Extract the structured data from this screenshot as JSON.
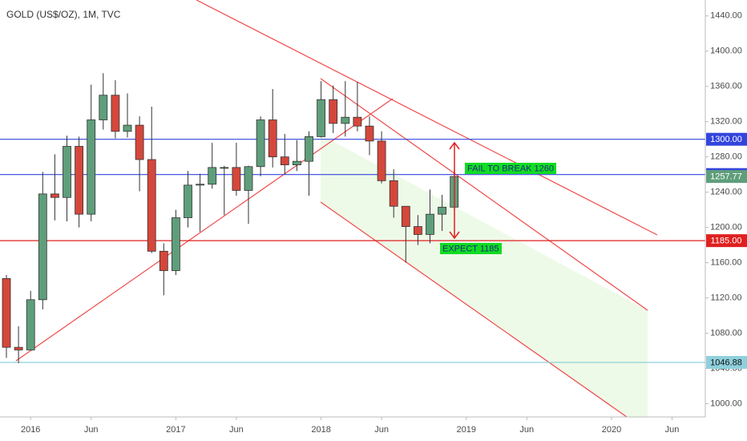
{
  "chart_data": {
    "type": "candlestick",
    "title": "GOLD (US$/OZ), 1M, TVC",
    "categories": [
      null,
      null,
      "2016",
      null,
      null,
      null,
      null,
      "Jun",
      null,
      null,
      null,
      null,
      null,
      null,
      "2017",
      null,
      null,
      null,
      null,
      "Jun",
      null,
      null,
      null,
      null,
      null,
      null,
      "2018",
      null,
      null,
      null,
      null,
      "Jun",
      null,
      null,
      null,
      null,
      null,
      null,
      "2019",
      null,
      null,
      null,
      null,
      "Jun",
      null,
      null,
      null,
      null,
      null,
      null,
      "2020",
      null,
      null,
      null,
      null,
      "Jun"
    ],
    "open": [
      1142,
      1064,
      1061,
      1118,
      1238,
      1234,
      1292,
      1215,
      1322,
      1350,
      1309,
      1316,
      1277,
      1173,
      1151,
      1211,
      1248,
      1249,
      1268,
      1268,
      1242,
      1269,
      1322,
      1280,
      1271,
      1275,
      1303,
      1345,
      1318,
      1325,
      1315,
      1298,
      1253,
      1224,
      1201,
      1192,
      1215,
      1223,
      null,
      null,
      null,
      null,
      null,
      null,
      null,
      null,
      null,
      null,
      null,
      null,
      null,
      null,
      null,
      null,
      null,
      null
    ],
    "high": [
      1146,
      1088,
      1128,
      1263,
      1283,
      1304,
      1303,
      1362,
      1375,
      1367,
      1352,
      1326,
      1337,
      1182,
      1220,
      1264,
      1261,
      1296,
      1270,
      1296,
      1270,
      1326,
      1357,
      1306,
      1299,
      1309,
      1366,
      1361,
      1366,
      1365,
      1326,
      1309,
      1266,
      1223,
      1214,
      1243,
      1237,
      1265,
      null,
      null,
      null,
      null,
      null,
      null,
      null,
      null,
      null,
      null,
      null,
      null,
      null,
      null,
      null,
      null,
      null,
      null
    ],
    "low": [
      1052,
      1046,
      1062,
      1107,
      1208,
      1207,
      1200,
      1207,
      1311,
      1301,
      1302,
      1241,
      1171,
      1123,
      1146,
      1200,
      1195,
      1244,
      1214,
      1236,
      1204,
      1258,
      1268,
      1260,
      1264,
      1236,
      1302,
      1307,
      1303,
      1309,
      1282,
      1250,
      1211,
      1160,
      1180,
      1182,
      1196,
      1221,
      null,
      null,
      null,
      null,
      null,
      null,
      null,
      null,
      null,
      null,
      null,
      null,
      null,
      null,
      null,
      null,
      null,
      null
    ],
    "close": [
      1064,
      1061,
      1118,
      1238,
      1234,
      1292,
      1215,
      1322,
      1350,
      1309,
      1316,
      1277,
      1173,
      1151,
      1211,
      1248,
      1249,
      1268,
      1268,
      1242,
      1269,
      1322,
      1280,
      1271,
      1275,
      1303,
      1345,
      1318,
      1325,
      1315,
      1298,
      1253,
      1224,
      1201,
      1192,
      1215,
      1223,
      1257.77,
      null,
      null,
      null,
      null,
      null,
      null,
      null,
      null,
      null,
      null,
      null,
      null,
      null,
      null,
      null,
      null,
      null,
      null
    ],
    "up_color": "#5f9e7b",
    "down_color": "#d5473b",
    "ylim": [
      985,
      1458
    ],
    "yticks": [
      {
        "value": 1000,
        "label": "1000.00"
      },
      {
        "value": 1040,
        "label": "1040.00"
      },
      {
        "value": 1080,
        "label": "1080.00"
      },
      {
        "value": 1120,
        "label": "1120.00"
      },
      {
        "value": 1160,
        "label": "1160.00"
      },
      {
        "value": 1200,
        "label": "1200.00"
      },
      {
        "value": 1240,
        "label": "1240.00"
      },
      {
        "value": 1280,
        "label": "1280.00"
      },
      {
        "value": 1320,
        "label": "1320.00"
      },
      {
        "value": 1360,
        "label": "1360.00"
      },
      {
        "value": 1400,
        "label": "1400.00"
      },
      {
        "value": 1440,
        "label": "1440.00"
      }
    ],
    "levels": [
      {
        "value": 1300,
        "label": "1300.00",
        "color": "#3344dd"
      },
      {
        "value": 1260,
        "label": "1260.00",
        "color": "#3344dd"
      },
      {
        "value": 1185,
        "label": "1185.00",
        "color": "#e02020"
      },
      {
        "value": 1046.88,
        "label": "1046.88",
        "color": "#8fd0dc"
      }
    ],
    "last_price": {
      "value": 1257.77,
      "label": "1257.77"
    },
    "annotations": [
      "FAIL TO BREAK 1260",
      "EXPECT 1185"
    ]
  }
}
